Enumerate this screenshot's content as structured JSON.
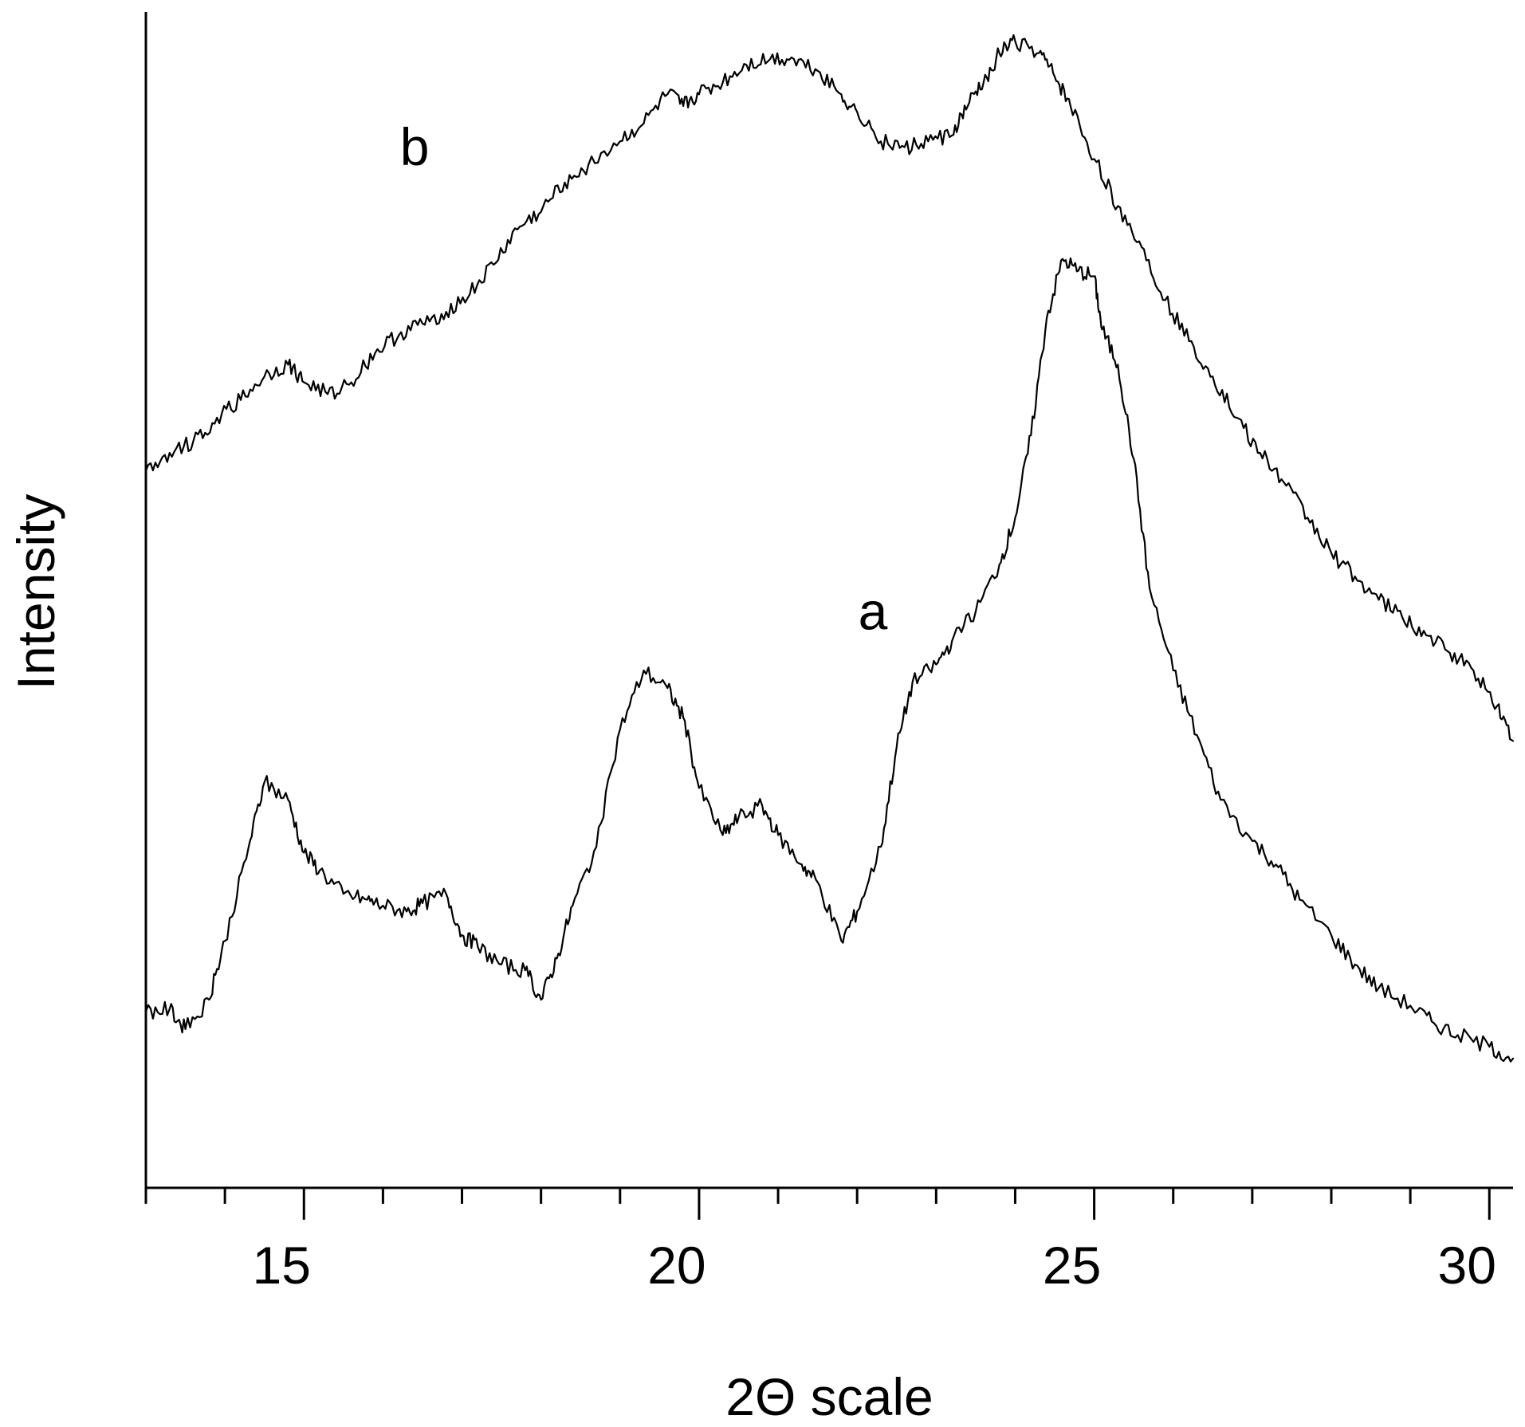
{
  "chart_data": {
    "type": "line",
    "xlabel": "2Θ scale",
    "ylabel": "Intensity",
    "xlim": [
      13,
      30.3
    ],
    "ylim": [
      0,
      100
    ],
    "x_ticks": [
      15,
      20,
      25,
      30
    ],
    "x_minor_step": 1,
    "grid": false,
    "legend": "none",
    "series": [
      {
        "name": "a",
        "x": [
          13.0,
          13.3,
          13.5,
          13.8,
          14.0,
          14.3,
          14.5,
          14.8,
          15.0,
          15.2,
          15.5,
          15.8,
          16.0,
          16.3,
          16.5,
          16.8,
          17.0,
          17.2,
          17.5,
          17.8,
          18.0,
          18.2,
          18.4,
          18.7,
          19.0,
          19.3,
          19.6,
          19.8,
          20.0,
          20.3,
          20.5,
          20.8,
          21.0,
          21.3,
          21.5,
          21.8,
          22.0,
          22.3,
          22.5,
          22.7,
          23.0,
          23.2,
          23.5,
          23.8,
          24.0,
          24.2,
          24.4,
          24.6,
          24.8,
          25.0,
          25.1,
          25.3,
          25.5,
          25.7,
          26.0,
          26.3,
          26.6,
          27.0,
          27.3,
          27.6,
          28.0,
          28.3,
          28.6,
          29.0,
          29.3,
          29.6,
          30.0,
          30.3
        ],
        "values": [
          15.0,
          15.2,
          13.5,
          16.0,
          21.0,
          29.0,
          34.5,
          33.0,
          28.5,
          27.0,
          25.0,
          24.5,
          24.0,
          23.5,
          24.2,
          25.0,
          21.5,
          20.5,
          19.0,
          18.5,
          16.0,
          19.5,
          24.0,
          29.0,
          39.0,
          44.0,
          42.5,
          40.0,
          34.0,
          30.0,
          31.5,
          32.5,
          30.0,
          27.5,
          26.0,
          21.0,
          23.5,
          29.0,
          37.5,
          43.0,
          44.5,
          46.5,
          49.0,
          53.0,
          57.0,
          64.0,
          74.0,
          79.0,
          78.0,
          77.5,
          73.0,
          70.0,
          62.0,
          51.0,
          44.0,
          38.5,
          33.0,
          29.5,
          27.5,
          24.5,
          21.5,
          19.0,
          17.0,
          15.5,
          14.0,
          13.0,
          12.0,
          11.0
        ]
      },
      {
        "name": "b",
        "x": [
          13.0,
          13.3,
          13.6,
          13.9,
          14.2,
          14.5,
          14.8,
          15.0,
          15.3,
          15.6,
          15.9,
          16.2,
          16.5,
          16.8,
          17.1,
          17.4,
          17.7,
          18.0,
          18.3,
          18.6,
          19.0,
          19.3,
          19.6,
          19.8,
          20.0,
          20.3,
          20.6,
          20.9,
          21.2,
          21.5,
          21.8,
          22.0,
          22.3,
          22.6,
          22.9,
          23.2,
          23.4,
          23.6,
          23.8,
          24.0,
          24.3,
          24.5,
          24.7,
          25.0,
          25.3,
          25.6,
          25.9,
          26.2,
          26.5,
          26.8,
          27.1,
          27.4,
          27.7,
          28.0,
          28.3,
          28.6,
          28.9,
          29.2,
          29.5,
          29.8,
          30.1,
          30.3
        ],
        "values": [
          61.0,
          62.5,
          63.5,
          65.5,
          67.0,
          69.0,
          70.0,
          68.5,
          67.5,
          68.5,
          71.0,
          72.5,
          73.5,
          74.5,
          76.0,
          78.5,
          81.5,
          83.0,
          85.5,
          87.0,
          89.0,
          90.5,
          93.0,
          92.0,
          93.0,
          94.0,
          95.5,
          96.0,
          96.0,
          95.0,
          93.0,
          91.5,
          89.0,
          88.5,
          89.0,
          89.5,
          92.0,
          94.0,
          96.5,
          97.5,
          96.5,
          94.5,
          92.0,
          87.5,
          83.5,
          80.0,
          75.5,
          72.0,
          69.0,
          65.5,
          62.5,
          60.0,
          57.0,
          54.0,
          52.0,
          50.0,
          48.5,
          47.0,
          45.5,
          44.0,
          41.0,
          38.0
        ]
      }
    ],
    "annotations": [
      {
        "text": "b",
        "x": 16.4,
        "y": 87
      },
      {
        "text": "a",
        "x": 22.2,
        "y": 47.5
      }
    ]
  }
}
